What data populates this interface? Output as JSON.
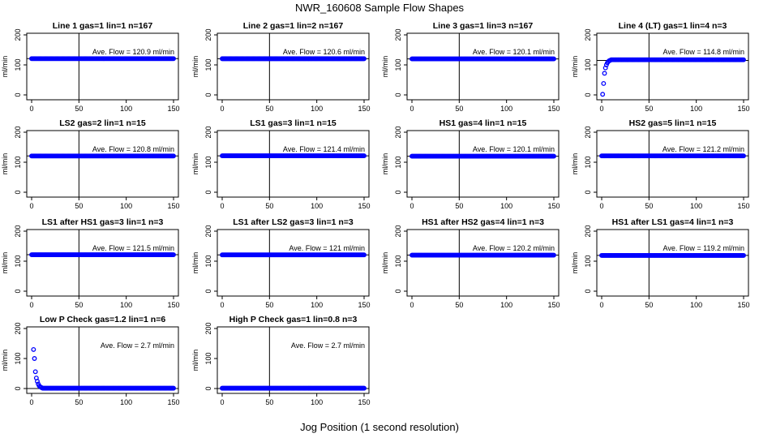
{
  "page": {
    "title": "NWR_160608  Sample Flow Shapes",
    "xlabel": "Jog Position (1 second resolution)"
  },
  "colors": {
    "points": "#0000ff",
    "axes": "#000000",
    "background": "#ffffff"
  },
  "chart_data": [
    {
      "type": "scatter",
      "title": "Line 1 gas=1 lin=1 n=167",
      "annotation": "Ave. Flow =  120.9  ml/min",
      "ylabel": "ml/min",
      "xlim": [
        0,
        150
      ],
      "ylim": [
        0,
        200
      ],
      "xticks": [
        "0",
        "50",
        "100",
        "150"
      ],
      "yticks": [
        "0",
        "100",
        "200"
      ],
      "vline": 50,
      "hline": 120.9,
      "profile": "flat",
      "x_range": [
        0,
        150
      ],
      "y": 120.9
    },
    {
      "type": "scatter",
      "title": "Line 2 gas=1 lin=2 n=167",
      "annotation": "Ave. Flow =  120.6  ml/min",
      "ylabel": "ml/min",
      "xlim": [
        0,
        150
      ],
      "ylim": [
        0,
        200
      ],
      "xticks": [
        "0",
        "50",
        "100",
        "150"
      ],
      "yticks": [
        "0",
        "100",
        "200"
      ],
      "vline": 50,
      "hline": 120.6,
      "profile": "flat",
      "x_range": [
        0,
        150
      ],
      "y": 120.6
    },
    {
      "type": "scatter",
      "title": "Line 3 gas=1 lin=3 n=167",
      "annotation": "Ave. Flow =  120.1  ml/min",
      "ylabel": "ml/min",
      "xlim": [
        0,
        150
      ],
      "ylim": [
        0,
        200
      ],
      "xticks": [
        "0",
        "50",
        "100",
        "150"
      ],
      "yticks": [
        "0",
        "100",
        "200"
      ],
      "vline": 50,
      "hline": 120.1,
      "profile": "flat",
      "x_range": [
        0,
        150
      ],
      "y": 120.1
    },
    {
      "type": "scatter",
      "title": "Line 4 (LT) gas=1 lin=4 n=3",
      "annotation": "Ave. Flow =  114.8  ml/min",
      "ylabel": "ml/min",
      "xlim": [
        0,
        150
      ],
      "ylim": [
        0,
        200
      ],
      "xticks": [
        "0",
        "50",
        "100",
        "150"
      ],
      "yticks": [
        "0",
        "100",
        "200"
      ],
      "vline": 50,
      "hline": 114.8,
      "profile": "flat",
      "x_range": [
        10,
        150
      ],
      "y": 117,
      "extra_points": [
        [
          1,
          2
        ],
        [
          2,
          38
        ],
        [
          3,
          72
        ],
        [
          4,
          90
        ],
        [
          5,
          100
        ],
        [
          6,
          107
        ],
        [
          7,
          111
        ],
        [
          8,
          114
        ],
        [
          9,
          115
        ]
      ]
    },
    {
      "type": "scatter",
      "title": "LS2 gas=2 lin=1 n=15",
      "annotation": "Ave. Flow =  120.8  ml/min",
      "ylabel": "ml/min",
      "xlim": [
        0,
        150
      ],
      "ylim": [
        0,
        200
      ],
      "xticks": [
        "0",
        "50",
        "100",
        "150"
      ],
      "yticks": [
        "0",
        "100",
        "200"
      ],
      "vline": 50,
      "hline": 120.8,
      "profile": "flat",
      "x_range": [
        0,
        150
      ],
      "y": 120.8
    },
    {
      "type": "scatter",
      "title": "LS1 gas=3 lin=1 n=15",
      "annotation": "Ave. Flow =  121.4  ml/min",
      "ylabel": "ml/min",
      "xlim": [
        0,
        150
      ],
      "ylim": [
        0,
        200
      ],
      "xticks": [
        "0",
        "50",
        "100",
        "150"
      ],
      "yticks": [
        "0",
        "100",
        "200"
      ],
      "vline": 50,
      "hline": 121.4,
      "profile": "flat",
      "x_range": [
        0,
        150
      ],
      "y": 121.4
    },
    {
      "type": "scatter",
      "title": "HS1 gas=4 lin=1 n=15",
      "annotation": "Ave. Flow =  120.1  ml/min",
      "ylabel": "ml/min",
      "xlim": [
        0,
        150
      ],
      "ylim": [
        0,
        200
      ],
      "xticks": [
        "0",
        "50",
        "100",
        "150"
      ],
      "yticks": [
        "0",
        "100",
        "200"
      ],
      "vline": 50,
      "hline": 120.1,
      "profile": "flat",
      "x_range": [
        0,
        150
      ],
      "y": 120.1
    },
    {
      "type": "scatter",
      "title": "HS2 gas=5 lin=1 n=15",
      "annotation": "Ave. Flow =  121.2  ml/min",
      "ylabel": "ml/min",
      "xlim": [
        0,
        150
      ],
      "ylim": [
        0,
        200
      ],
      "xticks": [
        "0",
        "50",
        "100",
        "150"
      ],
      "yticks": [
        "0",
        "100",
        "200"
      ],
      "vline": 50,
      "hline": 121.2,
      "profile": "flat",
      "x_range": [
        0,
        150
      ],
      "y": 121.2
    },
    {
      "type": "scatter",
      "title": "LS1 after HS1 gas=3 lin=1 n=3",
      "annotation": "Ave. Flow =  121.5  ml/min",
      "ylabel": "ml/min",
      "xlim": [
        0,
        150
      ],
      "ylim": [
        0,
        200
      ],
      "xticks": [
        "0",
        "50",
        "100",
        "150"
      ],
      "yticks": [
        "0",
        "100",
        "200"
      ],
      "vline": 50,
      "hline": 121.5,
      "profile": "flat",
      "x_range": [
        0,
        150
      ],
      "y": 121.5
    },
    {
      "type": "scatter",
      "title": "LS1 after LS2 gas=3 lin=1 n=3",
      "annotation": "Ave. Flow =  121  ml/min",
      "ylabel": "ml/min",
      "xlim": [
        0,
        150
      ],
      "ylim": [
        0,
        200
      ],
      "xticks": [
        "0",
        "50",
        "100",
        "150"
      ],
      "yticks": [
        "0",
        "100",
        "200"
      ],
      "vline": 50,
      "hline": 121,
      "profile": "flat",
      "x_range": [
        0,
        150
      ],
      "y": 121
    },
    {
      "type": "scatter",
      "title": "HS1 after HS2 gas=4 lin=1 n=3",
      "annotation": "Ave. Flow =  120.2  ml/min",
      "ylabel": "ml/min",
      "xlim": [
        0,
        150
      ],
      "ylim": [
        0,
        200
      ],
      "xticks": [
        "0",
        "50",
        "100",
        "150"
      ],
      "yticks": [
        "0",
        "100",
        "200"
      ],
      "vline": 50,
      "hline": 120.2,
      "profile": "flat",
      "x_range": [
        0,
        150
      ],
      "y": 120.2
    },
    {
      "type": "scatter",
      "title": "HS1 after LS1 gas=4 lin=1 n=3",
      "annotation": "Ave. Flow =  119.2  ml/min",
      "ylabel": "ml/min",
      "xlim": [
        0,
        150
      ],
      "ylim": [
        0,
        200
      ],
      "xticks": [
        "0",
        "50",
        "100",
        "150"
      ],
      "yticks": [
        "0",
        "100",
        "200"
      ],
      "vline": 50,
      "hline": 119.2,
      "profile": "flat",
      "x_range": [
        0,
        150
      ],
      "y": 119.2
    },
    {
      "type": "scatter",
      "title": "Low P Check gas=1.2 lin=1 n=6",
      "annotation": "Ave. Flow =  2.7  ml/min",
      "ylabel": "ml/min",
      "xlim": [
        0,
        150
      ],
      "ylim": [
        0,
        200
      ],
      "xticks": [
        "0",
        "50",
        "100",
        "150"
      ],
      "yticks": [
        "0",
        "100",
        "200"
      ],
      "vline": 50,
      "hline": 0,
      "profile": "flat",
      "x_range": [
        12,
        150
      ],
      "y": 1,
      "extra_points": [
        [
          2,
          130
        ],
        [
          3,
          100
        ],
        [
          4,
          56
        ],
        [
          5,
          35
        ],
        [
          6,
          24
        ],
        [
          7,
          15
        ],
        [
          8,
          9
        ],
        [
          9,
          6
        ],
        [
          10,
          4
        ],
        [
          11,
          2
        ]
      ]
    },
    {
      "type": "scatter",
      "title": "High P Check gas=1 lin=0.8 n=3",
      "annotation": "Ave. Flow =  2.7  ml/min",
      "ylabel": "ml/min",
      "xlim": [
        0,
        150
      ],
      "ylim": [
        0,
        200
      ],
      "xticks": [
        "0",
        "50",
        "100",
        "150"
      ],
      "yticks": [
        "0",
        "100",
        "200"
      ],
      "vline": 50,
      "hline": 0,
      "profile": "flat",
      "x_range": [
        0,
        150
      ],
      "y": 1
    }
  ]
}
